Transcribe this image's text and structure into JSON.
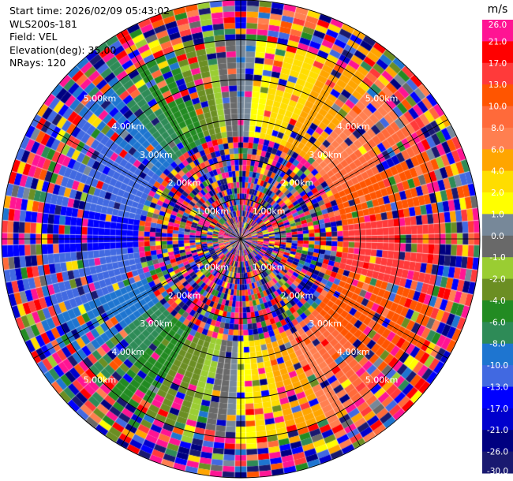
{
  "info": {
    "start_time": "Start time: 2026/02/09 05:43:02",
    "device": "WLS200s-181",
    "field": "Field: VEL",
    "elevation": "Elevation(deg): 35.00",
    "nrays": "NRays: 120"
  },
  "chart_data": {
    "type": "polar-ppi",
    "field": "VEL",
    "nrays": 120,
    "max_range_km": 6.0,
    "range_rings_km": [
      1.0,
      2.0,
      3.0,
      4.0,
      5.0,
      6.0
    ],
    "ring_labels": [
      "1.00km",
      "2.00km",
      "3.00km",
      "4.00km",
      "5.00km"
    ],
    "colorbar": {
      "unit": "m/s",
      "levels": [
        "26.0",
        "21.0",
        "17.0",
        "13.0",
        "10.0",
        "8.0",
        "6.0",
        "4.0",
        "2.0",
        "1.0",
        "0.0",
        "-1.0",
        "-2.0",
        "-4.0",
        "-6.0",
        "-8.0",
        "-10.0",
        "-13.0",
        "-17.0",
        "-21.0",
        "-26.0",
        "-30.0"
      ],
      "colors": [
        "#ff1493",
        "#ff0000",
        "#ff3a3a",
        "#ff5500",
        "#ff6a3a",
        "#ff7f50",
        "#ffa500",
        "#ffdd00",
        "#ffff00",
        "#778899",
        "#696969",
        "#9acd32",
        "#6b8e23",
        "#228b22",
        "#2e8b57",
        "#1e75d0",
        "#4169e1",
        "#0000ff",
        "#0000cd",
        "#000080",
        "#191970"
      ]
    },
    "velocity_pattern_by_azimuth_deg": [
      {
        "azimuth": 0,
        "velocity": 0.5
      },
      {
        "azimuth": 30,
        "velocity": 4.5
      },
      {
        "azimuth": 60,
        "velocity": 9.0
      },
      {
        "azimuth": 90,
        "velocity": 14.0
      },
      {
        "azimuth": 120,
        "velocity": 12.0
      },
      {
        "azimuth": 150,
        "velocity": 7.0
      },
      {
        "azimuth": 180,
        "velocity": 1.0
      },
      {
        "azimuth": 210,
        "velocity": -4.5
      },
      {
        "azimuth": 240,
        "velocity": -9.0
      },
      {
        "azimuth": 270,
        "velocity": -14.0
      },
      {
        "azimuth": 300,
        "velocity": -11.5
      },
      {
        "azimuth": 330,
        "velocity": -6.0
      }
    ]
  }
}
